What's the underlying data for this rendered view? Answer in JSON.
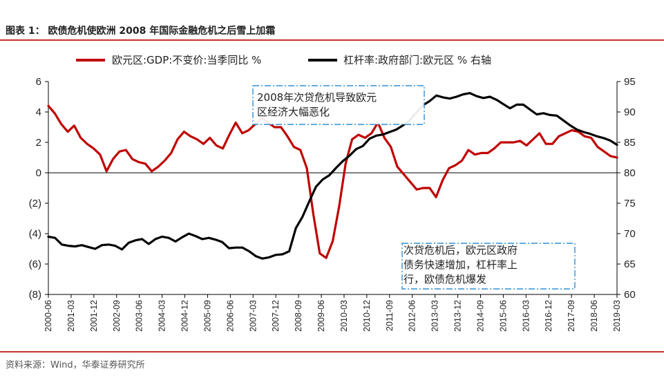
{
  "header": {
    "title": "图表 1：    欧债危机使欧洲 2008 年国际金融危机之后雪上加霜"
  },
  "footer": {
    "source": "资料来源：Wind，华泰证券研究所"
  },
  "colors": {
    "accent_rule": "#c9302c",
    "gdp_line": "#c00000",
    "leverage_line": "#000000",
    "annotation_border": "#2f8fd6"
  },
  "chart_data": {
    "type": "line",
    "legend_position": "top",
    "grid": false,
    "x_ticks": [
      "2000-06",
      "2001-03",
      "2001-12",
      "2002-09",
      "2003-06",
      "2004-03",
      "2004-12",
      "2005-09",
      "2006-06",
      "2007-03",
      "2007-12",
      "2008-09",
      "2009-06",
      "2010-03",
      "2010-12",
      "2011-09",
      "2012-06",
      "2013-03",
      "2013-12",
      "2014-09",
      "2015-06",
      "2016-03",
      "2016-12",
      "2017-09",
      "2018-06",
      "2019-03"
    ],
    "y_left": {
      "ylim": [
        -8,
        6
      ],
      "ticks": [
        "6",
        "4",
        "2",
        "0",
        "(2)",
        "(4)",
        "(6)",
        "(8)"
      ]
    },
    "y_right": {
      "ylim": [
        60,
        95
      ],
      "ticks": [
        "95",
        "90",
        "85",
        "80",
        "75",
        "70",
        "65",
        "60"
      ]
    },
    "series": [
      {
        "name": "欧元区:GDP:不变价:当季同比 %",
        "axis": "left",
        "color": "#c00000",
        "values": [
          4.4,
          3.9,
          3.2,
          2.7,
          3.1,
          2.3,
          1.9,
          1.6,
          1.2,
          0.1,
          0.9,
          1.4,
          1.5,
          0.9,
          0.7,
          0.6,
          0.1,
          0.4,
          0.8,
          1.3,
          2.2,
          2.7,
          2.4,
          2.2,
          1.9,
          2.3,
          1.8,
          1.6,
          2.5,
          3.3,
          2.6,
          2.8,
          3.2,
          3.6,
          3.3,
          3.0,
          3.0,
          2.4,
          1.7,
          1.5,
          0.3,
          -2.7,
          -5.3,
          -5.6,
          -4.5,
          -2.2,
          0.6,
          2.2,
          2.5,
          2.3,
          2.6,
          3.3,
          2.3,
          1.7,
          0.4,
          -0.1,
          -0.6,
          -1.1,
          -1.0,
          -1.0,
          -1.6,
          -0.5,
          0.3,
          0.5,
          0.8,
          1.5,
          1.2,
          1.3,
          1.3,
          1.6,
          2.0,
          2.0,
          2.0,
          2.1,
          1.8,
          2.2,
          2.6,
          1.9,
          1.9,
          2.4,
          2.6,
          2.8,
          2.7,
          2.4,
          2.3,
          1.7,
          1.4,
          1.1,
          1.0
        ]
      },
      {
        "name": "杠杆率:政府部门:欧元区 % 右轴",
        "axis": "right",
        "color": "#000000",
        "values": [
          69.5,
          69.3,
          68.2,
          68.0,
          67.9,
          68.1,
          67.8,
          67.5,
          68.1,
          68.2,
          68.0,
          67.4,
          68.5,
          68.9,
          69.1,
          68.3,
          69.1,
          69.5,
          69.3,
          68.7,
          69.4,
          70.0,
          69.6,
          69.1,
          69.3,
          69.0,
          68.6,
          67.6,
          67.7,
          67.7,
          67.1,
          66.3,
          65.9,
          66.1,
          66.5,
          66.6,
          67.1,
          70.9,
          72.8,
          75.3,
          77.7,
          78.9,
          79.6,
          80.8,
          81.9,
          82.8,
          83.9,
          84.4,
          85.6,
          86.1,
          86.3,
          86.7,
          87.1,
          87.8,
          88.6,
          89.9,
          91.1,
          91.8,
          92.7,
          92.4,
          92.2,
          92.5,
          92.9,
          93.1,
          92.6,
          92.3,
          92.5,
          92.0,
          91.3,
          90.6,
          91.2,
          91.2,
          90.4,
          89.6,
          89.8,
          89.5,
          89.4,
          88.6,
          87.8,
          87.1,
          86.7,
          86.4,
          86.0,
          85.7,
          85.3,
          84.6
        ]
      }
    ],
    "annotations": [
      {
        "lines": [
          "2008年次贷危机导致欧元",
          "区经济大幅恶化"
        ]
      },
      {
        "lines": [
          "次贷危机后，欧元区政府",
          "债务快速增加，杠杆率上",
          "行，欧债危机爆发"
        ]
      }
    ]
  }
}
